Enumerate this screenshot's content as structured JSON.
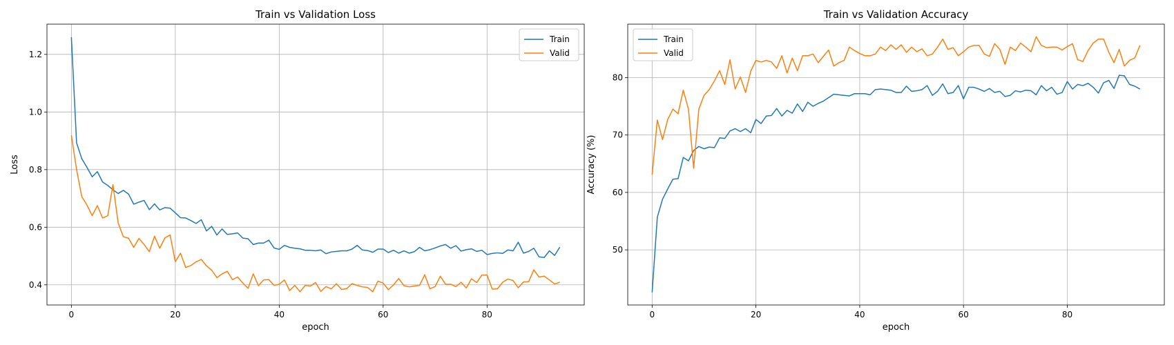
{
  "chart_data": [
    {
      "type": "line",
      "title": "Train vs Validation Loss",
      "xlabel": "epoch",
      "ylabel": "Loss",
      "xlim": [
        -4.7,
        98.7
      ],
      "ylim": [
        0.33,
        1.305
      ],
      "xticks": [
        0,
        20,
        40,
        60,
        80
      ],
      "yticks": [
        0.4,
        0.6,
        0.8,
        1.0,
        1.2
      ],
      "ytick_labels": [
        "0.4",
        "0.6",
        "0.8",
        "1.0",
        "1.2"
      ],
      "grid": true,
      "legend_position": "top-right",
      "x": [
        0,
        1,
        2,
        3,
        4,
        5,
        6,
        7,
        8,
        9,
        10,
        11,
        12,
        13,
        14,
        15,
        16,
        17,
        18,
        19,
        20,
        21,
        22,
        23,
        24,
        25,
        26,
        27,
        28,
        29,
        30,
        31,
        32,
        33,
        34,
        35,
        36,
        37,
        38,
        39,
        40,
        41,
        42,
        43,
        44,
        45,
        46,
        47,
        48,
        49,
        50,
        51,
        52,
        53,
        54,
        55,
        56,
        57,
        58,
        59,
        60,
        61,
        62,
        63,
        64,
        65,
        66,
        67,
        68,
        69,
        70,
        71,
        72,
        73,
        74,
        75,
        76,
        77,
        78,
        79,
        80,
        81,
        82,
        83,
        84,
        85,
        86,
        87,
        88,
        89,
        90,
        91,
        92,
        93,
        94
      ],
      "series": [
        {
          "name": "Train",
          "color": "#1f77b4",
          "values": [
            1.26,
            0.893,
            0.838,
            0.808,
            0.775,
            0.793,
            0.757,
            0.745,
            0.73,
            0.717,
            0.728,
            0.715,
            0.68,
            0.687,
            0.693,
            0.661,
            0.681,
            0.66,
            0.668,
            0.666,
            0.65,
            0.633,
            0.632,
            0.623,
            0.613,
            0.626,
            0.587,
            0.603,
            0.573,
            0.594,
            0.575,
            0.577,
            0.58,
            0.562,
            0.56,
            0.54,
            0.545,
            0.545,
            0.555,
            0.528,
            0.523,
            0.537,
            0.53,
            0.527,
            0.525,
            0.52,
            0.52,
            0.518,
            0.521,
            0.508,
            0.514,
            0.516,
            0.518,
            0.518,
            0.524,
            0.537,
            0.521,
            0.519,
            0.513,
            0.524,
            0.524,
            0.512,
            0.52,
            0.51,
            0.518,
            0.51,
            0.515,
            0.53,
            0.518,
            0.522,
            0.528,
            0.535,
            0.54,
            0.527,
            0.536,
            0.517,
            0.522,
            0.525,
            0.516,
            0.52,
            0.505,
            0.509,
            0.511,
            0.509,
            0.521,
            0.518,
            0.548,
            0.51,
            0.516,
            0.527,
            0.497,
            0.495,
            0.518,
            0.502,
            0.531
          ]
        },
        {
          "name": "Valid",
          "color": "#ff7f0e",
          "values": [
            0.919,
            0.8,
            0.706,
            0.677,
            0.64,
            0.675,
            0.632,
            0.64,
            0.748,
            0.615,
            0.567,
            0.562,
            0.53,
            0.561,
            0.54,
            0.515,
            0.569,
            0.527,
            0.563,
            0.573,
            0.48,
            0.51,
            0.46,
            0.467,
            0.48,
            0.488,
            0.466,
            0.451,
            0.425,
            0.438,
            0.447,
            0.418,
            0.427,
            0.406,
            0.388,
            0.438,
            0.397,
            0.417,
            0.418,
            0.398,
            0.402,
            0.417,
            0.38,
            0.398,
            0.376,
            0.398,
            0.396,
            0.408,
            0.377,
            0.394,
            0.386,
            0.404,
            0.384,
            0.387,
            0.404,
            0.398,
            0.393,
            0.391,
            0.376,
            0.413,
            0.406,
            0.383,
            0.4,
            0.422,
            0.397,
            0.393,
            0.396,
            0.398,
            0.435,
            0.386,
            0.394,
            0.43,
            0.402,
            0.402,
            0.394,
            0.409,
            0.389,
            0.421,
            0.408,
            0.434,
            0.434,
            0.385,
            0.386,
            0.409,
            0.42,
            0.415,
            0.39,
            0.41,
            0.411,
            0.452,
            0.427,
            0.43,
            0.417,
            0.403,
            0.409
          ]
        }
      ]
    },
    {
      "type": "line",
      "title": "Train vs Validation Accuracy",
      "xlabel": "epoch",
      "ylabel": "Accuracy (%)",
      "xlim": [
        -4.7,
        98.7
      ],
      "ylim": [
        40.4,
        89.3
      ],
      "xticks": [
        0,
        20,
        40,
        60,
        80
      ],
      "yticks": [
        50,
        60,
        70,
        80
      ],
      "ytick_labels": [
        "50",
        "60",
        "70",
        "80"
      ],
      "grid": true,
      "legend_position": "top-left",
      "x": [
        0,
        1,
        2,
        3,
        4,
        5,
        6,
        7,
        8,
        9,
        10,
        11,
        12,
        13,
        14,
        15,
        16,
        17,
        18,
        19,
        20,
        21,
        22,
        23,
        24,
        25,
        26,
        27,
        28,
        29,
        30,
        31,
        32,
        33,
        34,
        35,
        36,
        37,
        38,
        39,
        40,
        41,
        42,
        43,
        44,
        45,
        46,
        47,
        48,
        49,
        50,
        51,
        52,
        53,
        54,
        55,
        56,
        57,
        58,
        59,
        60,
        61,
        62,
        63,
        64,
        65,
        66,
        67,
        68,
        69,
        70,
        71,
        72,
        73,
        74,
        75,
        76,
        77,
        78,
        79,
        80,
        81,
        82,
        83,
        84,
        85,
        86,
        87,
        88,
        89,
        90,
        91,
        92,
        93,
        94
      ],
      "series": [
        {
          "name": "Train",
          "color": "#1f77b4",
          "values": [
            42.6,
            55.7,
            58.8,
            60.6,
            62.3,
            62.4,
            66.1,
            65.5,
            67.3,
            68.0,
            67.6,
            67.9,
            67.8,
            69.5,
            69.4,
            70.7,
            71.1,
            70.6,
            71.1,
            70.4,
            72.7,
            72.0,
            73.3,
            73.4,
            74.6,
            73.3,
            74.3,
            73.8,
            75.4,
            74.1,
            75.7,
            75.0,
            75.5,
            75.9,
            76.5,
            77.1,
            77.0,
            76.9,
            76.8,
            77.2,
            77.2,
            77.2,
            77.0,
            77.9,
            78.0,
            77.9,
            77.8,
            77.4,
            77.4,
            78.5,
            77.6,
            77.7,
            77.9,
            78.6,
            76.9,
            77.6,
            78.9,
            77.2,
            77.4,
            78.6,
            76.3,
            78.3,
            78.3,
            78.0,
            77.6,
            78.1,
            77.4,
            77.6,
            76.7,
            76.9,
            77.7,
            77.5,
            77.8,
            77.7,
            77.0,
            78.6,
            77.7,
            78.3,
            77.1,
            77.4,
            79.3,
            78.0,
            78.8,
            78.6,
            79.0,
            78.3,
            77.3,
            79.1,
            79.5,
            78.1,
            80.4,
            80.3,
            78.8,
            78.5,
            78.0
          ]
        },
        {
          "name": "Valid",
          "color": "#ff7f0e",
          "values": [
            63.1,
            72.6,
            69.2,
            72.7,
            74.5,
            73.7,
            77.8,
            74.5,
            64.2,
            74.5,
            76.9,
            77.9,
            79.4,
            81.2,
            78.8,
            83.1,
            78.0,
            80.1,
            77.4,
            81.1,
            83.0,
            82.7,
            83.0,
            82.7,
            81.6,
            83.8,
            80.8,
            83.4,
            81.2,
            83.8,
            83.8,
            84.1,
            82.6,
            83.7,
            84.8,
            82.0,
            82.6,
            83.0,
            85.3,
            84.7,
            84.2,
            83.8,
            83.8,
            84.1,
            85.3,
            84.7,
            85.7,
            84.9,
            85.7,
            84.4,
            85.3,
            84.5,
            85.0,
            83.8,
            84.1,
            85.3,
            86.7,
            84.9,
            85.2,
            83.8,
            84.5,
            85.3,
            85.6,
            85.6,
            84.1,
            83.7,
            85.9,
            84.9,
            82.3,
            85.3,
            84.7,
            86.0,
            85.3,
            84.5,
            87.1,
            85.6,
            85.2,
            85.3,
            85.3,
            84.8,
            85.4,
            85.9,
            83.1,
            82.8,
            84.7,
            86.0,
            86.7,
            86.7,
            84.4,
            82.6,
            84.9,
            82.0,
            83.0,
            83.4,
            85.6
          ]
        }
      ]
    }
  ]
}
